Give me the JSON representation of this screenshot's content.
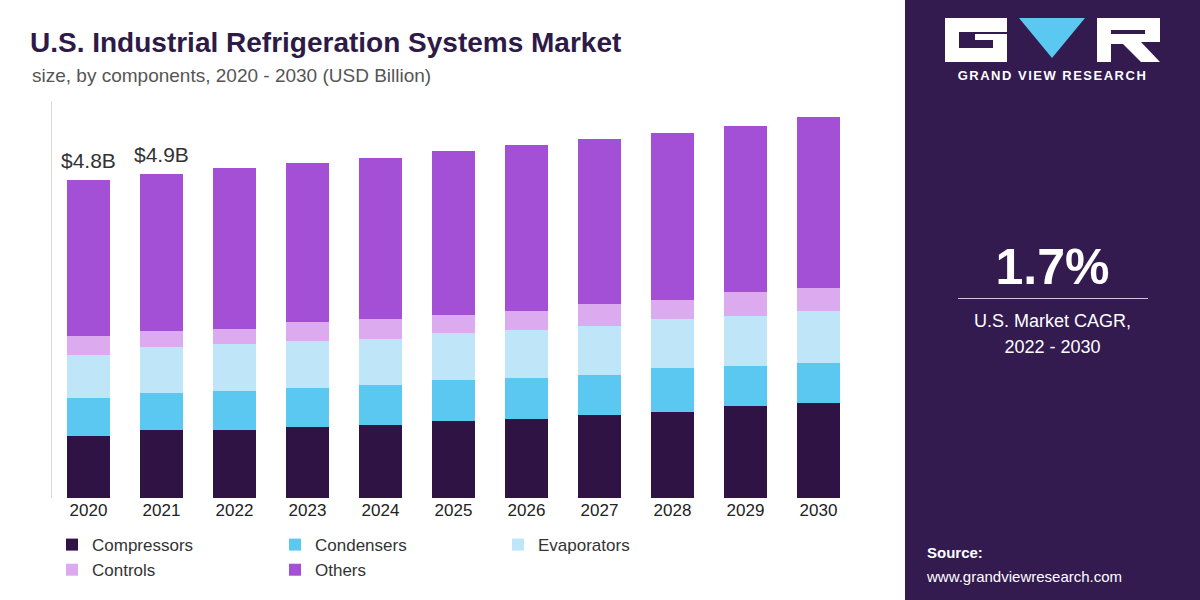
{
  "chart_data": {
    "type": "bar",
    "stacked": true,
    "title": "U.S. Industrial Refrigeration Systems Market",
    "subtitle": "size, by components, 2020 - 2030 (USD Billion)",
    "categories": [
      "2020",
      "2021",
      "2022",
      "2023",
      "2024",
      "2025",
      "2026",
      "2027",
      "2028",
      "2029",
      "2030"
    ],
    "series": [
      {
        "name": "Compressors",
        "color": "#2e1344",
        "values": [
          0.94,
          1.03,
          1.03,
          1.07,
          1.11,
          1.16,
          1.2,
          1.26,
          1.3,
          1.39,
          1.44
        ]
      },
      {
        "name": "Condensers",
        "color": "#5bc8f2",
        "values": [
          0.57,
          0.55,
          0.58,
          0.6,
          0.6,
          0.63,
          0.61,
          0.6,
          0.66,
          0.6,
          0.6
        ]
      },
      {
        "name": "Evaporators",
        "color": "#bfe6f8",
        "values": [
          0.65,
          0.7,
          0.71,
          0.7,
          0.7,
          0.71,
          0.73,
          0.74,
          0.74,
          0.76,
          0.79
        ]
      },
      {
        "name": "Controls",
        "color": "#dcaaee",
        "values": [
          0.29,
          0.24,
          0.23,
          0.29,
          0.29,
          0.27,
          0.29,
          0.33,
          0.29,
          0.36,
          0.34
        ]
      },
      {
        "name": "Others",
        "color": "#a450d6",
        "values": [
          2.35,
          2.38,
          2.44,
          2.4,
          2.44,
          2.47,
          2.5,
          2.5,
          2.53,
          2.51,
          2.59
        ]
      }
    ],
    "annotations": [
      {
        "category": "2020",
        "value": 4.8,
        "label": "$4.8B"
      },
      {
        "category": "2021",
        "value": 4.9,
        "label": "$4.9B"
      }
    ],
    "ylim": [
      0,
      6
    ],
    "tick_labels": "x",
    "grid": false,
    "legend": "bottom"
  },
  "sidebar": {
    "brand": "GRAND VIEW RESEARCH",
    "cagr": "1.7%",
    "cagr_label": [
      "U.S. Market CAGR,",
      "2022 - 2030"
    ],
    "source_label": "Source:",
    "source": "www.grandviewresearch.com"
  }
}
